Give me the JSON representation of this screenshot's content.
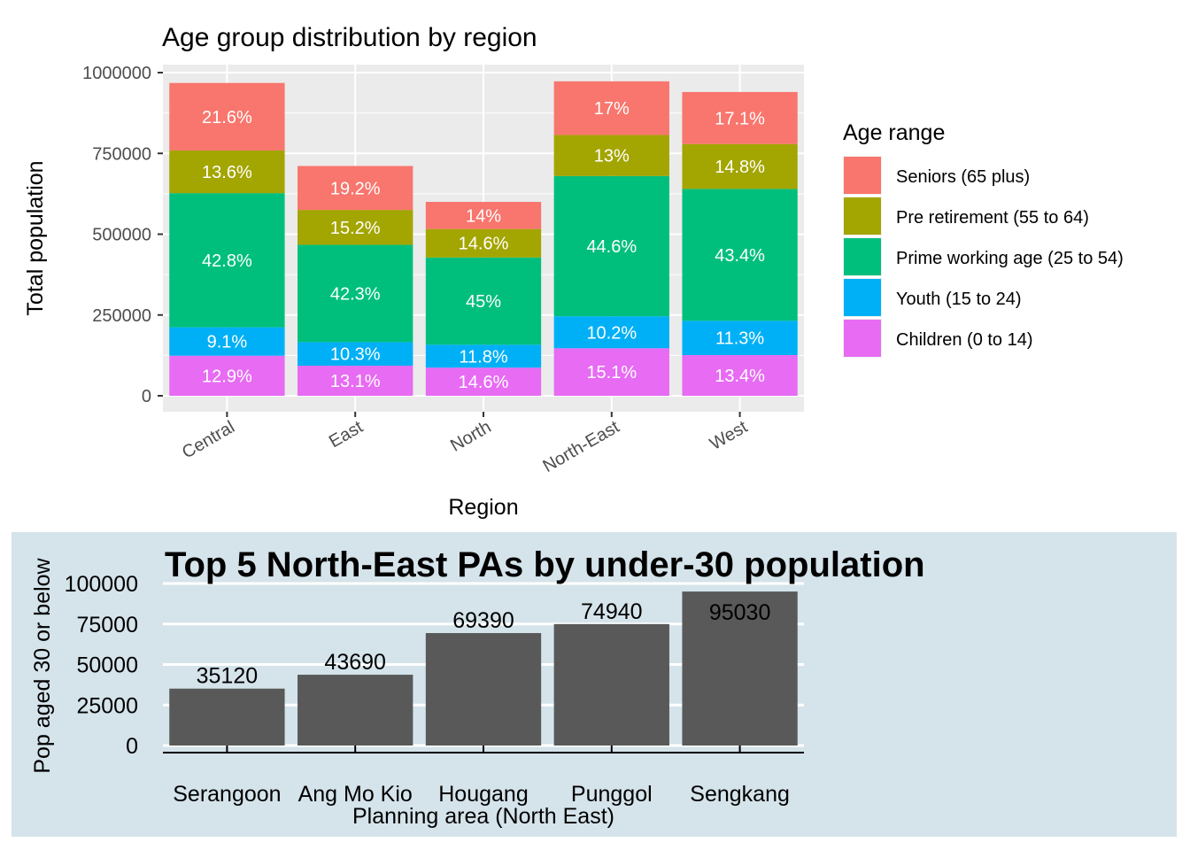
{
  "chart_data": [
    {
      "type": "bar",
      "stacked": true,
      "title": "Age group distribution by region",
      "xlabel": "Region",
      "ylabel": "Total population",
      "categories": [
        "Central",
        "East",
        "North",
        "North-East",
        "West"
      ],
      "yticks": [
        "0",
        "250000",
        "500000",
        "750000",
        "1000000"
      ],
      "ylim": [
        0,
        1000000
      ],
      "grid": true,
      "legend": {
        "title": "Age range",
        "placement": "right"
      },
      "series": [
        {
          "name": "Children (0 to 14)",
          "color": "#E76BF3",
          "values": [
            124000,
            93000,
            87000,
            147000,
            126000
          ],
          "labels": [
            "12.9%",
            "13.1%",
            "14.6%",
            "15.1%",
            "13.4%"
          ]
        },
        {
          "name": "Youth (15 to 24)",
          "color": "#00B0F6",
          "values": [
            88000,
            73000,
            71000,
            99000,
            106000
          ],
          "labels": [
            "9.1%",
            "10.3%",
            "11.8%",
            "10.2%",
            "11.3%"
          ]
        },
        {
          "name": "Prime working age (25 to 54)",
          "color": "#00BF7D",
          "values": [
            415000,
            301000,
            270000,
            434000,
            408000
          ],
          "labels": [
            "42.8%",
            "42.3%",
            "45%",
            "44.6%",
            "43.4%"
          ]
        },
        {
          "name": "Pre retirement (55 to 64)",
          "color": "#A3A500",
          "values": [
            132000,
            108000,
            88000,
            127000,
            139000
          ],
          "labels": [
            "13.6%",
            "15.2%",
            "14.6%",
            "13%",
            "14.8%"
          ]
        },
        {
          "name": "Seniors (65 plus)",
          "color": "#F8766D",
          "values": [
            209000,
            136000,
            84000,
            166000,
            161000
          ],
          "labels": [
            "21.6%",
            "19.2%",
            "14%",
            "17%",
            "17.1%"
          ]
        }
      ]
    },
    {
      "type": "bar",
      "title": "Top 5 North-East PAs by under-30 population",
      "xlabel": "Planning area (North East)",
      "ylabel": "Pop aged 30 or below",
      "categories": [
        "Serangoon",
        "Ang Mo Kio",
        "Hougang",
        "Punggol",
        "Sengkang"
      ],
      "values": [
        35120,
        43690,
        69390,
        74940,
        95030
      ],
      "yticks": [
        "0",
        "25000",
        "50000",
        "75000",
        "100000"
      ],
      "ylim": [
        0,
        100000
      ],
      "bar_color": "#595959",
      "panel_color": "#D5E3EA"
    }
  ]
}
